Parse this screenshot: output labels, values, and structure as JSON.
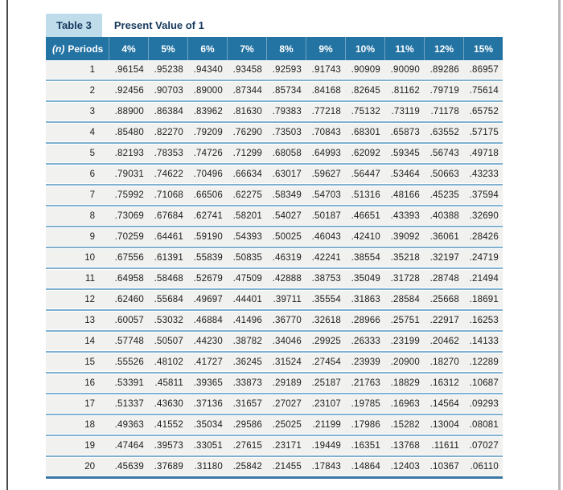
{
  "page": {
    "table_label": "Table 3",
    "table_title": "Present Value of 1"
  },
  "table": {
    "periods_header": {
      "prefix": "(n)",
      "label": "Periods"
    },
    "rate_columns": [
      "4%",
      "5%",
      "6%",
      "7%",
      "8%",
      "9%",
      "10%",
      "11%",
      "12%",
      "15%"
    ],
    "rows": [
      {
        "n": "1",
        "values": [
          ".96154",
          ".95238",
          ".94340",
          ".93458",
          ".92593",
          ".91743",
          ".90909",
          ".90090",
          ".89286",
          ".86957"
        ]
      },
      {
        "n": "2",
        "values": [
          ".92456",
          ".90703",
          ".89000",
          ".87344",
          ".85734",
          ".84168",
          ".82645",
          ".81162",
          ".79719",
          ".75614"
        ]
      },
      {
        "n": "3",
        "values": [
          ".88900",
          ".86384",
          ".83962",
          ".81630",
          ".79383",
          ".77218",
          ".75132",
          ".73119",
          ".71178",
          ".65752"
        ]
      },
      {
        "n": "4",
        "values": [
          ".85480",
          ".82270",
          ".79209",
          ".76290",
          ".73503",
          ".70843",
          ".68301",
          ".65873",
          ".63552",
          ".57175"
        ]
      },
      {
        "n": "5",
        "values": [
          ".82193",
          ".78353",
          ".74726",
          ".71299",
          ".68058",
          ".64993",
          ".62092",
          ".59345",
          ".56743",
          ".49718"
        ]
      },
      {
        "n": "6",
        "values": [
          ".79031",
          ".74622",
          ".70496",
          ".66634",
          ".63017",
          ".59627",
          ".56447",
          ".53464",
          ".50663",
          ".43233"
        ]
      },
      {
        "n": "7",
        "values": [
          ".75992",
          ".71068",
          ".66506",
          ".62275",
          ".58349",
          ".54703",
          ".51316",
          ".48166",
          ".45235",
          ".37594"
        ]
      },
      {
        "n": "8",
        "values": [
          ".73069",
          ".67684",
          ".62741",
          ".58201",
          ".54027",
          ".50187",
          ".46651",
          ".43393",
          ".40388",
          ".32690"
        ]
      },
      {
        "n": "9",
        "values": [
          ".70259",
          ".64461",
          ".59190",
          ".54393",
          ".50025",
          ".46043",
          ".42410",
          ".39092",
          ".36061",
          ".28426"
        ]
      },
      {
        "n": "10",
        "values": [
          ".67556",
          ".61391",
          ".55839",
          ".50835",
          ".46319",
          ".42241",
          ".38554",
          ".35218",
          ".32197",
          ".24719"
        ]
      },
      {
        "n": "11",
        "values": [
          ".64958",
          ".58468",
          ".52679",
          ".47509",
          ".42888",
          ".38753",
          ".35049",
          ".31728",
          ".28748",
          ".21494"
        ]
      },
      {
        "n": "12",
        "values": [
          ".62460",
          ".55684",
          ".49697",
          ".44401",
          ".39711",
          ".35554",
          ".31863",
          ".28584",
          ".25668",
          ".18691"
        ]
      },
      {
        "n": "13",
        "values": [
          ".60057",
          ".53032",
          ".46884",
          ".41496",
          ".36770",
          ".32618",
          ".28966",
          ".25751",
          ".22917",
          ".16253"
        ]
      },
      {
        "n": "14",
        "values": [
          ".57748",
          ".50507",
          ".44230",
          ".38782",
          ".34046",
          ".29925",
          ".26333",
          ".23199",
          ".20462",
          ".14133"
        ]
      },
      {
        "n": "15",
        "values": [
          ".55526",
          ".48102",
          ".41727",
          ".36245",
          ".31524",
          ".27454",
          ".23939",
          ".20900",
          ".18270",
          ".12289"
        ]
      },
      {
        "n": "16",
        "values": [
          ".53391",
          ".45811",
          ".39365",
          ".33873",
          ".29189",
          ".25187",
          ".21763",
          ".18829",
          ".16312",
          ".10687"
        ]
      },
      {
        "n": "17",
        "values": [
          ".51337",
          ".43630",
          ".37136",
          ".31657",
          ".27027",
          ".23107",
          ".19785",
          ".16963",
          ".14564",
          ".09293"
        ]
      },
      {
        "n": "18",
        "values": [
          ".49363",
          ".41552",
          ".35034",
          ".29586",
          ".25025",
          ".21199",
          ".17986",
          ".15282",
          ".13004",
          ".08081"
        ]
      },
      {
        "n": "19",
        "values": [
          ".47464",
          ".39573",
          ".33051",
          ".27615",
          ".23171",
          ".19449",
          ".16351",
          ".13768",
          ".11611",
          ".07027"
        ]
      },
      {
        "n": "20",
        "values": [
          ".45639",
          ".37689",
          ".31180",
          ".25842",
          ".21455",
          ".17843",
          ".14864",
          ".12403",
          ".10367",
          ".06110"
        ]
      }
    ]
  },
  "colors": {
    "header_bg": "#2373a3",
    "tab_bg": "#bfdcea",
    "title_text": "#16395d",
    "row_bg": "#f1f1ef",
    "row_separator": "#7fb0d0",
    "bottom_border": "#3a77a4"
  }
}
